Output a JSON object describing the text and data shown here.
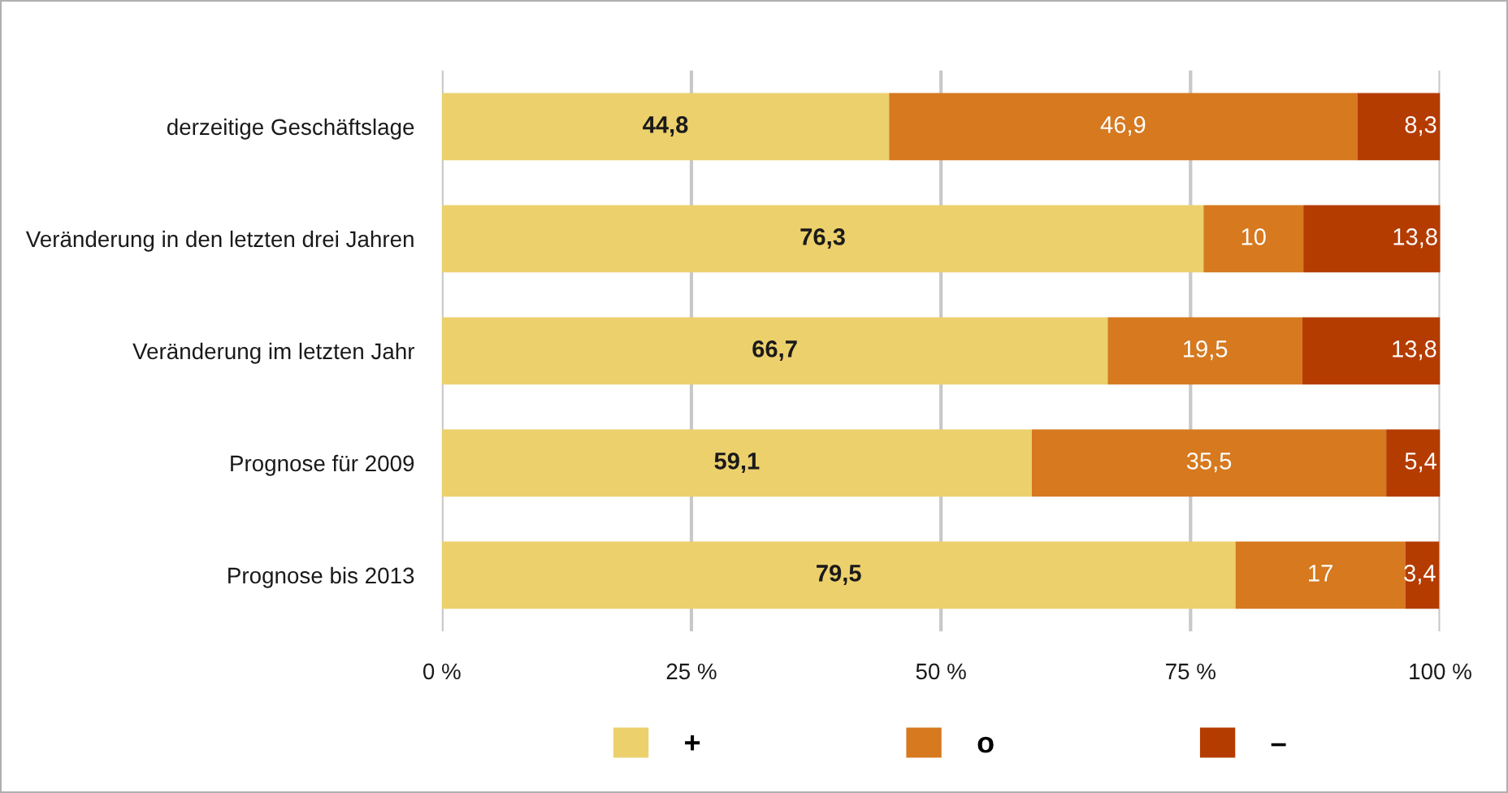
{
  "chart_data": {
    "type": "bar",
    "orientation": "horizontal",
    "stacked": true,
    "categories": [
      "derzeitige Geschäftslage",
      "Veränderung in den letzten drei Jahren",
      "Veränderung im letzten Jahr",
      "Prognose für 2009",
      "Prognose bis 2013"
    ],
    "series": [
      {
        "name": "+",
        "color": "#ecd06c",
        "values": [
          44.8,
          76.3,
          66.7,
          59.1,
          79.5
        ],
        "value_labels": [
          "44,8",
          "76,3",
          "66,7",
          "59,1",
          "79,5"
        ]
      },
      {
        "name": "o",
        "color": "#d6791f",
        "values": [
          46.9,
          10,
          19.5,
          35.5,
          17
        ],
        "value_labels": [
          "46,9",
          "10",
          "19,5",
          "35,5",
          "17"
        ]
      },
      {
        "name": "–",
        "color": "#b43c00",
        "values": [
          8.3,
          13.8,
          13.8,
          5.4,
          3.4
        ],
        "value_labels": [
          "8,3",
          "13,8",
          "13,8",
          "5,4",
          "3,4"
        ]
      }
    ],
    "xlim": [
      0,
      100
    ],
    "xticks": [
      {
        "value": 0,
        "label": "0 %"
      },
      {
        "value": 25,
        "label": "25 %"
      },
      {
        "value": 50,
        "label": "50 %"
      },
      {
        "value": 75,
        "label": "75 %"
      },
      {
        "value": 100,
        "label": "100 %"
      }
    ],
    "grid": "x",
    "legend": "bottom"
  }
}
